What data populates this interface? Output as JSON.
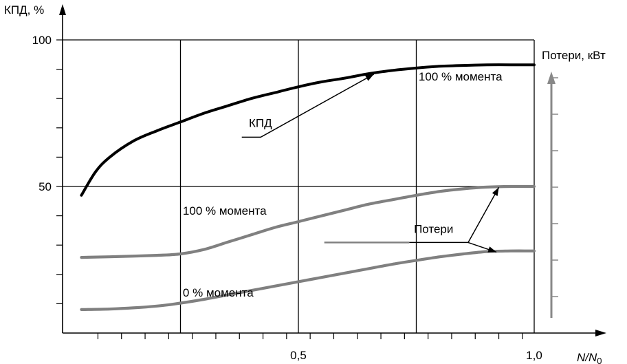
{
  "chart_data": {
    "type": "line",
    "y_axis": {
      "title": "КПД, %",
      "range": [
        0,
        100
      ],
      "tick_labels": [
        {
          "value": 50,
          "label": "50"
        },
        {
          "value": 100,
          "label": "100"
        }
      ],
      "minor_step": 10
    },
    "x_axis": {
      "title_main": "N/N",
      "title_sub": "0",
      "range": [
        0,
        1.0
      ],
      "tick_labels": [
        {
          "value": 0.5,
          "label": "0,5"
        },
        {
          "value": 1.0,
          "label": "1,0"
        }
      ],
      "minor_step": 0.05
    },
    "secondary_axis": {
      "title": "Потери, кВт",
      "color": "#888888"
    },
    "grid": {
      "vertical": [
        0.25,
        0.5,
        0.75,
        1.0
      ],
      "horizontal": [
        50,
        100
      ]
    },
    "series": [
      {
        "color": "#000000",
        "x": [
          0.04,
          0.07,
          0.1,
          0.15,
          0.2,
          0.25,
          0.3,
          0.35,
          0.4,
          0.45,
          0.5,
          0.55,
          0.6,
          0.65,
          0.7,
          0.75,
          0.8,
          0.85,
          0.9,
          0.95,
          1.0
        ],
        "y": [
          47,
          55,
          60,
          65.5,
          69,
          72,
          75,
          77.5,
          80,
          82,
          84,
          85.7,
          87,
          88.5,
          89.6,
          90.4,
          91,
          91.3,
          91.5,
          91.5,
          91.5
        ]
      },
      {
        "color": "#808080",
        "x": [
          0.04,
          0.1,
          0.2,
          0.25,
          0.3,
          0.35,
          0.4,
          0.45,
          0.5,
          0.55,
          0.6,
          0.65,
          0.7,
          0.75,
          0.8,
          0.85,
          0.9,
          0.95,
          1.0
        ],
        "y": [
          25.8,
          26,
          26.5,
          27,
          28.5,
          31,
          33.5,
          36,
          38,
          40,
          42,
          44,
          45.5,
          47,
          48.3,
          49.2,
          49.8,
          50,
          50
        ]
      },
      {
        "color": "#808080",
        "x": [
          0.04,
          0.1,
          0.15,
          0.2,
          0.25,
          0.3,
          0.35,
          0.4,
          0.45,
          0.5,
          0.55,
          0.6,
          0.65,
          0.7,
          0.75,
          0.8,
          0.85,
          0.9,
          0.95,
          1.0
        ],
        "y": [
          8,
          8.2,
          8.6,
          9.2,
          10.2,
          11.5,
          13,
          14.5,
          16,
          17.5,
          19,
          20.5,
          22,
          23.5,
          24.8,
          26,
          27,
          27.8,
          28,
          28
        ]
      }
    ],
    "annotations": [
      {
        "text": "100 % момента",
        "x": 0.755,
        "y": 86.2,
        "anchor": "start"
      },
      {
        "text": "КПД",
        "x": 0.395,
        "y": 70.3,
        "anchor": "start"
      },
      {
        "text": "100 % момента",
        "x": 0.255,
        "y": 40.4,
        "anchor": "start"
      },
      {
        "text": "Потери",
        "x": 0.745,
        "y": 34.2,
        "anchor": "start"
      },
      {
        "text": "0 % момента",
        "x": 0.255,
        "y": 12.4,
        "anchor": "start"
      }
    ],
    "pointers": [
      {
        "points": [
          [
            0.38,
            66.8
          ],
          [
            0.42,
            66.8
          ],
          [
            0.66,
            88.3
          ]
        ],
        "color": "#000000"
      },
      {
        "points": [
          [
            0.735,
            30.9
          ],
          [
            0.86,
            30.9
          ],
          [
            0.925,
            49.7
          ]
        ],
        "color": "#000000"
      },
      {
        "points": [
          [
            0.86,
            30.9
          ],
          [
            0.92,
            27.6
          ]
        ],
        "color": "#000000"
      },
      {
        "points": [
          [
            0.555,
            30.9
          ],
          [
            0.735,
            30.9
          ]
        ],
        "color": "#808080"
      }
    ]
  }
}
